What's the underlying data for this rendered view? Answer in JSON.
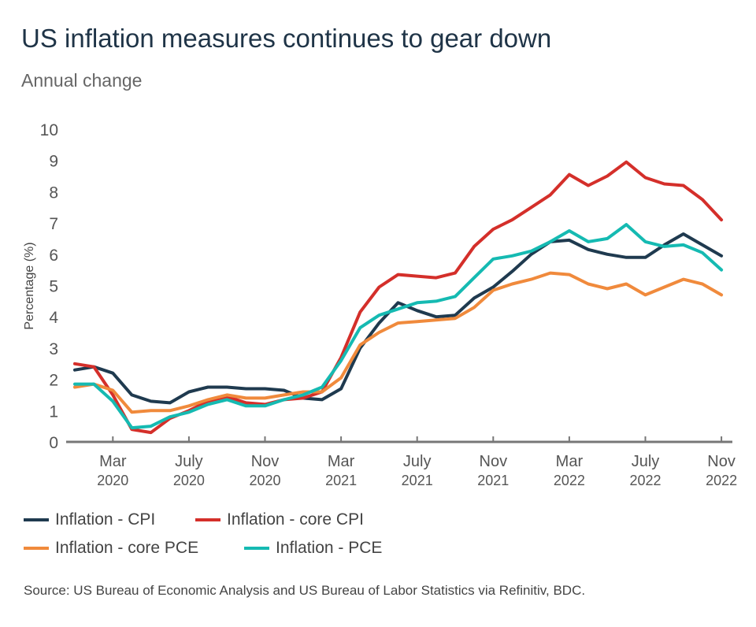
{
  "title": "US inflation measures continues to gear down",
  "subtitle": "Annual change",
  "source": "Source: US Bureau of Economic Analysis and US Bureau of Labor Statistics via Refinitiv, BDC.",
  "chart_data": {
    "type": "line",
    "ylabel": "Percentage (%)",
    "ylim": [
      0,
      10
    ],
    "yticks": [
      "0",
      "1",
      "2",
      "3",
      "4",
      "5",
      "6",
      "7",
      "8",
      "9",
      "10"
    ],
    "x_start": "2020-01",
    "x_end": "2022-11",
    "xticks": [
      {
        "month": "2020-03",
        "label1": "Mar",
        "label2": "2020"
      },
      {
        "month": "2020-07",
        "label1": "July",
        "label2": "2020"
      },
      {
        "month": "2020-11",
        "label1": "Nov",
        "label2": "2020"
      },
      {
        "month": "2021-03",
        "label1": "Mar",
        "label2": "2021"
      },
      {
        "month": "2021-07",
        "label1": "July",
        "label2": "2021"
      },
      {
        "month": "2021-11",
        "label1": "Nov",
        "label2": "2021"
      },
      {
        "month": "2022-03",
        "label1": "Mar",
        "label2": "2022"
      },
      {
        "month": "2022-07",
        "label1": "July",
        "label2": "2022"
      },
      {
        "month": "2022-11",
        "label1": "Nov",
        "label2": "2022"
      }
    ],
    "grid": false,
    "legend_placement": "bottom",
    "series": [
      {
        "name": "Inflation - CPI",
        "color": "#1f3a4f",
        "values": [
          2.3,
          2.4,
          2.2,
          1.5,
          1.3,
          1.25,
          1.6,
          1.75,
          1.75,
          1.7,
          1.7,
          1.65,
          1.4,
          1.35,
          1.7,
          3.0,
          3.8,
          4.45,
          4.2,
          4.0,
          4.05,
          4.6,
          4.95,
          5.45,
          6.0,
          6.4,
          6.45,
          6.15,
          6.0,
          5.9,
          5.9,
          6.3,
          6.65,
          6.3,
          5.95
        ]
      },
      {
        "name": "Inflation - core CPI",
        "color": "#d42f2a",
        "values": [
          2.5,
          2.4,
          1.5,
          0.4,
          0.3,
          0.75,
          1.0,
          1.3,
          1.45,
          1.25,
          1.2,
          1.35,
          1.4,
          1.6,
          2.7,
          4.15,
          4.95,
          5.35,
          5.3,
          5.25,
          5.4,
          6.25,
          6.8,
          7.1,
          7.5,
          7.9,
          8.55,
          8.2,
          8.5,
          8.95,
          8.45,
          8.25,
          8.2,
          7.75,
          7.1
        ]
      },
      {
        "name": "Inflation - core PCE",
        "color": "#f08a3c",
        "values": [
          1.75,
          1.85,
          1.65,
          0.95,
          1.0,
          1.0,
          1.15,
          1.35,
          1.5,
          1.4,
          1.4,
          1.5,
          1.6,
          1.6,
          2.05,
          3.1,
          3.5,
          3.8,
          3.85,
          3.9,
          3.95,
          4.3,
          4.85,
          5.05,
          5.2,
          5.4,
          5.35,
          5.05,
          4.9,
          5.05,
          4.7,
          4.95,
          5.2,
          5.05,
          4.7
        ]
      },
      {
        "name": "Inflation - PCE",
        "color": "#15bab2",
        "values": [
          1.85,
          1.85,
          1.3,
          0.45,
          0.5,
          0.8,
          0.95,
          1.2,
          1.35,
          1.15,
          1.15,
          1.35,
          1.5,
          1.75,
          2.6,
          3.65,
          4.05,
          4.25,
          4.45,
          4.5,
          4.65,
          5.25,
          5.85,
          5.95,
          6.1,
          6.4,
          6.75,
          6.4,
          6.5,
          6.95,
          6.4,
          6.25,
          6.3,
          6.05,
          5.5
        ]
      }
    ]
  }
}
